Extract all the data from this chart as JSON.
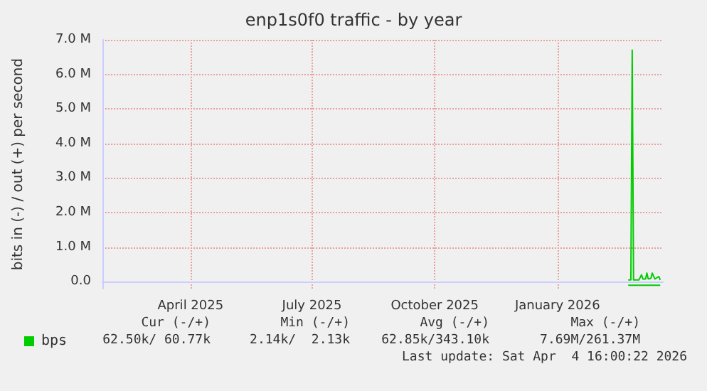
{
  "chart_data": {
    "type": "line",
    "title": "enp1s0f0 traffic - by year",
    "ylabel": "bits in (-) / out (+) per second",
    "xlim": [
      "2025-02-09",
      "2026-04-05"
    ],
    "xticks": [
      {
        "value": "2025-04-16",
        "label": "April 2025"
      },
      {
        "value": "2025-07-16",
        "label": "July 2025"
      },
      {
        "value": "2025-10-16",
        "label": "October 2025"
      },
      {
        "value": "2026-01-16",
        "label": "January 2026"
      }
    ],
    "ylim": [
      -200000,
      7000000
    ],
    "yticks": [
      {
        "value": 0,
        "label": "0.0"
      },
      {
        "value": 1000000,
        "label": "1.0 M"
      },
      {
        "value": 2000000,
        "label": "2.0 M"
      },
      {
        "value": 3000000,
        "label": "3.0 M"
      },
      {
        "value": 4000000,
        "label": "4.0 M"
      },
      {
        "value": 5000000,
        "label": "5.0 M"
      },
      {
        "value": 6000000,
        "label": "6.0 M"
      },
      {
        "value": 7000000,
        "label": "7.0 M"
      }
    ],
    "series": [
      {
        "name": "bps",
        "color": "#00cc00",
        "x": [
          "2026-03-10",
          "2026-03-12",
          "2026-03-13",
          "2026-03-14",
          "2026-03-15",
          "2026-03-18",
          "2026-03-20",
          "2026-03-21",
          "2026-03-23",
          "2026-03-24",
          "2026-03-25",
          "2026-03-27",
          "2026-03-28",
          "2026-03-30",
          "2026-04-02",
          "2026-04-03"
        ],
        "values": [
          50000,
          50000,
          6700000,
          50000,
          50000,
          50000,
          200000,
          80000,
          80000,
          250000,
          80000,
          100000,
          250000,
          80000,
          150000,
          50000
        ]
      },
      {
        "color": "#00cc00",
        "x": [
          "2026-03-10",
          "2026-03-13",
          "2026-03-20",
          "2026-03-27",
          "2026-04-03"
        ],
        "values": [
          -100000,
          -100000,
          -100000,
          -100000,
          -100000
        ]
      }
    ],
    "grid": true,
    "legend": "bottom left",
    "marker": "none",
    "line_style": "solid",
    "annotations": [
      "Cur (-/+)",
      "Min (-/+)",
      "Avg (-/+)",
      "Max (-/+)",
      "62.50k/ 60.77k",
      "2.14k/  2.13k",
      "62.85k/343.10k",
      "7.69M/261.37M",
      "Last update: Sat Apr  4 16:00:22 2026"
    ]
  }
}
